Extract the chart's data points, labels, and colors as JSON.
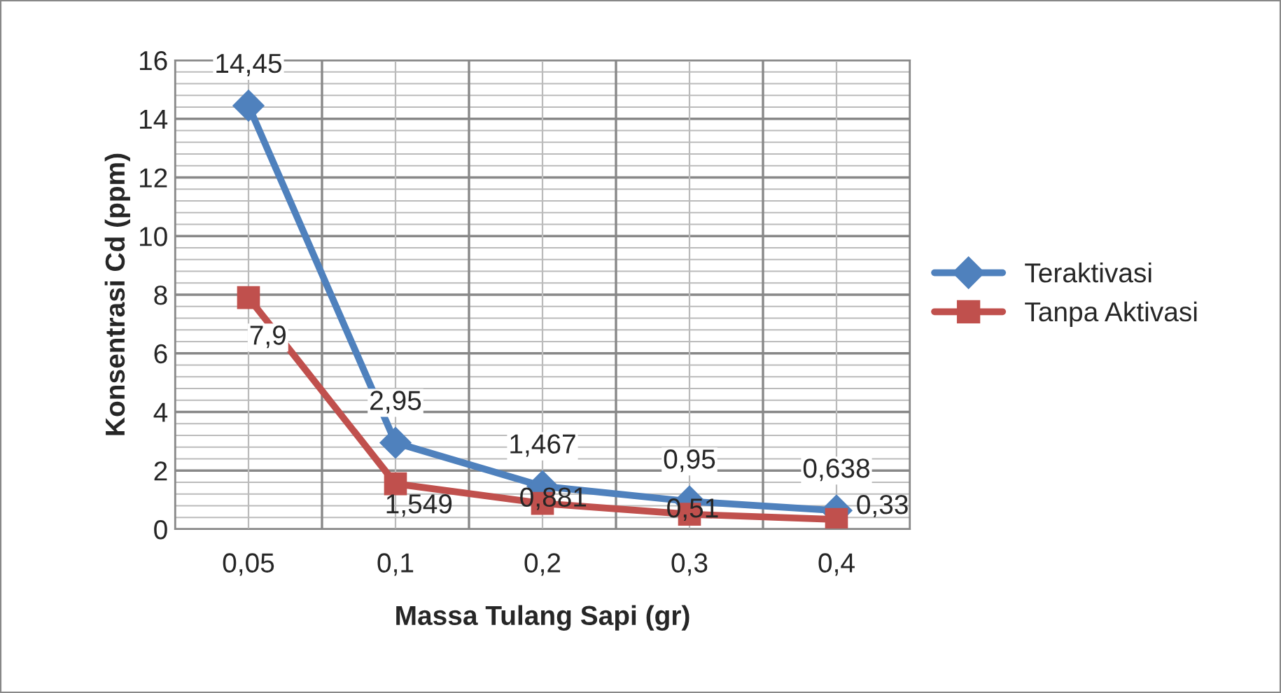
{
  "chart_data": {
    "type": "line",
    "xlabel": "Massa Tulang Sapi (gr)",
    "ylabel": "Konsentrasi Cd (ppm)",
    "categories": [
      "0,05",
      "0,1",
      "0,2",
      "0,3",
      "0,4"
    ],
    "series": [
      {
        "name": "Teraktivasi",
        "color": "#4f81bd",
        "marker": "diamond",
        "values": [
          14.45,
          2.95,
          1.467,
          0.95,
          0.638
        ],
        "value_labels": [
          "14,45",
          "2,95",
          "1,467",
          "0,95",
          "0,638"
        ]
      },
      {
        "name": "Tanpa Aktivasi",
        "color": "#c0504d",
        "marker": "square",
        "values": [
          7.9,
          1.549,
          0.881,
          0.51,
          0.33
        ],
        "value_labels": [
          "7,9",
          "1,549",
          "0,881",
          "0,51",
          "0,33"
        ]
      }
    ],
    "ylim": [
      0,
      16
    ],
    "yticks": [
      0,
      2,
      4,
      6,
      8,
      10,
      12,
      14,
      16
    ],
    "grid": true,
    "legend": "right"
  }
}
